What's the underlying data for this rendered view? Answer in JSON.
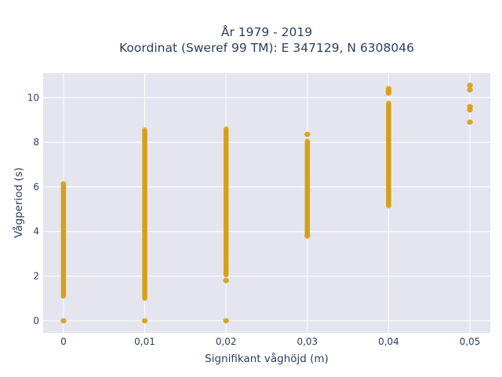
{
  "chart_data": {
    "type": "scatter",
    "title": "År 1979 - 2019",
    "subtitle": "Koordinat (Sweref 99 TM): E 347129, N 6308046",
    "xlabel": "Signifikant våghöjd (m)",
    "ylabel": "Vågperiod (s)",
    "xlim": [
      -0.0025,
      0.0525
    ],
    "ylim": [
      -0.55,
      11.1
    ],
    "x_ticks": [
      {
        "value": 0,
        "label": "0"
      },
      {
        "value": 0.01,
        "label": "0,01"
      },
      {
        "value": 0.02,
        "label": "0,02"
      },
      {
        "value": 0.03,
        "label": "0,03"
      },
      {
        "value": 0.04,
        "label": "0,04"
      },
      {
        "value": 0.05,
        "label": "0,05"
      }
    ],
    "y_ticks": [
      {
        "value": 0,
        "label": "0"
      },
      {
        "value": 2,
        "label": "2"
      },
      {
        "value": 4,
        "label": "4"
      },
      {
        "value": 6,
        "label": "6"
      },
      {
        "value": 8,
        "label": "8"
      },
      {
        "value": 10,
        "label": "10"
      }
    ],
    "grid": true,
    "marker_color": "#d4a017",
    "series": [
      {
        "clusters": [
          {
            "x": 0,
            "y_range": [
              1.1,
              6.15
            ],
            "isolated": [
              0.0
            ]
          },
          {
            "x": 0.01,
            "y_range": [
              1.0,
              8.55
            ],
            "isolated": [
              0.0
            ]
          },
          {
            "x": 0.02,
            "y_range": [
              2.05,
              8.6
            ],
            "isolated": [
              1.8,
              0.0
            ]
          },
          {
            "x": 0.03,
            "y_range": [
              3.85,
              8.05
            ],
            "isolated": [
              8.35,
              3.8
            ]
          },
          {
            "x": 0.04,
            "y_range": [
              5.15,
              9.75
            ],
            "isolated": [
              10.2,
              10.3,
              10.4
            ]
          },
          {
            "x": 0.05,
            "y_range": [],
            "isolated": [
              10.55,
              10.35,
              9.6,
              9.45,
              8.9
            ]
          }
        ]
      }
    ]
  }
}
